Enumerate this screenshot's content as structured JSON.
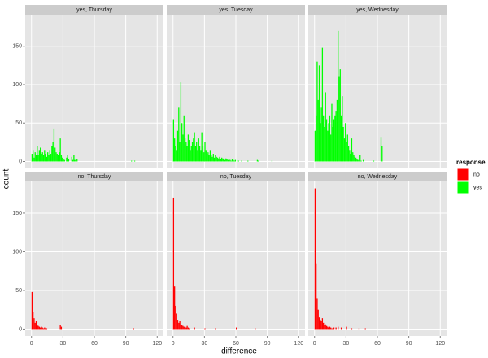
{
  "chart_data": {
    "type": "histogram",
    "xlabel": "difference",
    "ylabel": "count",
    "legend_title": "response",
    "legend": [
      {
        "name": "no",
        "color": "#ff0000"
      },
      {
        "name": "yes",
        "color": "#00ff00"
      }
    ],
    "xlim": [
      -6,
      126
    ],
    "xticks": [
      0,
      30,
      60,
      90,
      120
    ],
    "ylim": [
      -9,
      191
    ],
    "yticks": [
      0,
      50,
      100,
      150
    ],
    "grid": true,
    "bins": [
      0,
      1,
      2,
      3,
      4,
      5,
      6,
      7,
      8,
      9,
      10,
      11,
      12,
      13,
      14,
      15,
      16,
      17,
      18,
      19,
      20,
      21,
      22,
      23,
      24,
      25,
      26,
      27,
      28,
      29,
      30,
      31,
      32,
      33,
      34,
      35,
      36,
      37,
      38,
      39,
      40,
      41,
      42,
      43,
      44,
      45,
      46,
      47,
      48,
      49,
      50,
      51,
      52,
      53,
      54,
      55,
      56,
      57,
      58,
      59,
      60,
      61,
      62,
      63,
      64,
      65,
      66,
      67,
      68,
      69,
      70,
      71,
      72,
      73,
      74,
      75,
      76,
      77,
      78,
      79,
      80,
      81,
      82,
      83,
      84,
      85,
      86,
      87,
      88,
      89,
      90,
      91,
      92,
      93,
      94,
      95,
      96,
      97,
      98,
      99,
      100,
      101
    ],
    "panels": [
      {
        "title": "yes, Thursday",
        "color": "#00ff00",
        "values": [
          10,
          15,
          5,
          12,
          8,
          20,
          8,
          15,
          18,
          10,
          12,
          8,
          15,
          10,
          6,
          12,
          8,
          15,
          10,
          20,
          25,
          43,
          18,
          12,
          10,
          8,
          12,
          30,
          8,
          5,
          3,
          2,
          0,
          5,
          8,
          3,
          0,
          0,
          6,
          2,
          8,
          2,
          0,
          3,
          0,
          0,
          0,
          0,
          0,
          0,
          0,
          0,
          0,
          0,
          0,
          0,
          0,
          0,
          0,
          0,
          0,
          0,
          0,
          0,
          0,
          0,
          0,
          0,
          0,
          0,
          0,
          0,
          0,
          0,
          0,
          0,
          0,
          0,
          0,
          0,
          0,
          0,
          0,
          0,
          0,
          0,
          0,
          0,
          0,
          0,
          0,
          0,
          0,
          0,
          0,
          1,
          0,
          0,
          1,
          0,
          0
        ]
      },
      {
        "title": "yes, Tuesday",
        "color": "#00ff00",
        "values": [
          55,
          30,
          20,
          15,
          40,
          70,
          25,
          103,
          50,
          35,
          60,
          30,
          25,
          20,
          35,
          28,
          15,
          20,
          25,
          30,
          38,
          20,
          25,
          15,
          30,
          20,
          15,
          38,
          20,
          12,
          25,
          15,
          10,
          12,
          8,
          15,
          8,
          6,
          10,
          5,
          8,
          6,
          5,
          4,
          6,
          3,
          5,
          4,
          3,
          2,
          4,
          3,
          2,
          3,
          2,
          1,
          3,
          2,
          1,
          2,
          0,
          0,
          1,
          0,
          0,
          1,
          0,
          0,
          0,
          0,
          0,
          1,
          0,
          0,
          0,
          0,
          0,
          0,
          0,
          0,
          2,
          1,
          0,
          0,
          0,
          0,
          0,
          0,
          0,
          0,
          0,
          0,
          0,
          0,
          1,
          0,
          0,
          0,
          0,
          0,
          0
        ]
      },
      {
        "title": "yes, Wednesday",
        "color": "#00ff00",
        "values": [
          40,
          60,
          130,
          80,
          125,
          50,
          70,
          148,
          60,
          45,
          90,
          55,
          40,
          50,
          60,
          35,
          75,
          45,
          55,
          60,
          65,
          80,
          170,
          110,
          120,
          60,
          85,
          45,
          30,
          50,
          25,
          35,
          20,
          15,
          10,
          30,
          12,
          8,
          6,
          5,
          3,
          2,
          1,
          8,
          1,
          0,
          2,
          0,
          0,
          0,
          0,
          0,
          0,
          0,
          0,
          0,
          1,
          0,
          0,
          0,
          0,
          0,
          0,
          32,
          20,
          0,
          0,
          0,
          0,
          0,
          0,
          0,
          0,
          0,
          0,
          0,
          0,
          0,
          0,
          0,
          0,
          0,
          0,
          0,
          0,
          0,
          0,
          0,
          0,
          0,
          0,
          0,
          0,
          0,
          0,
          0,
          0,
          0,
          0,
          0,
          0
        ]
      },
      {
        "title": "no, Thursday",
        "color": "#ff0000",
        "values": [
          48,
          22,
          14,
          8,
          10,
          5,
          4,
          3,
          2,
          3,
          2,
          1,
          2,
          1,
          1,
          0,
          0,
          0,
          0,
          0,
          0,
          0,
          0,
          0,
          0,
          0,
          0,
          5,
          3,
          0,
          0,
          0,
          0,
          0,
          0,
          0,
          0,
          0,
          0,
          0,
          0,
          0,
          0,
          0,
          0,
          0,
          0,
          0,
          0,
          0,
          0,
          0,
          0,
          0,
          0,
          0,
          0,
          0,
          0,
          0,
          0,
          0,
          0,
          0,
          0,
          0,
          0,
          0,
          0,
          0,
          0,
          0,
          0,
          0,
          0,
          0,
          0,
          0,
          0,
          0,
          0,
          0,
          0,
          0,
          0,
          0,
          0,
          0,
          0,
          0,
          0,
          0,
          0,
          0,
          0,
          0,
          0,
          1,
          0,
          0,
          0
        ]
      },
      {
        "title": "no, Tuesday",
        "color": "#ff0000",
        "values": [
          170,
          55,
          30,
          20,
          12,
          8,
          10,
          6,
          5,
          4,
          3,
          3,
          2,
          4,
          2,
          1,
          0,
          0,
          0,
          0,
          2,
          0,
          0,
          0,
          0,
          0,
          0,
          0,
          0,
          0,
          1,
          0,
          0,
          0,
          0,
          0,
          0,
          0,
          0,
          0,
          1,
          0,
          0,
          0,
          0,
          0,
          0,
          0,
          0,
          0,
          0,
          0,
          0,
          0,
          0,
          0,
          0,
          0,
          0,
          0,
          2,
          0,
          0,
          0,
          0,
          0,
          0,
          0,
          0,
          0,
          0,
          0,
          0,
          0,
          0,
          0,
          0,
          0,
          1,
          0,
          0,
          0,
          0,
          0,
          0,
          0,
          0,
          0,
          0,
          0,
          0,
          0,
          0,
          0,
          0,
          0,
          0,
          0,
          0,
          0,
          0
        ]
      },
      {
        "title": "no, Wednesday",
        "color": "#ff0000",
        "values": [
          182,
          85,
          40,
          25,
          15,
          12,
          10,
          14,
          8,
          5,
          6,
          4,
          3,
          2,
          3,
          2,
          1,
          1,
          2,
          0,
          2,
          0,
          3,
          0,
          0,
          2,
          0,
          0,
          0,
          0,
          3,
          0,
          0,
          0,
          0,
          1,
          0,
          0,
          0,
          0,
          0,
          0,
          1,
          0,
          0,
          0,
          0,
          0,
          1,
          0,
          0,
          0,
          0,
          0,
          0,
          0,
          0,
          0,
          0,
          0,
          0,
          0,
          0,
          0,
          0,
          0,
          0,
          0,
          0,
          0,
          0,
          0,
          0,
          0,
          0,
          0,
          0,
          0,
          0,
          0,
          0,
          0,
          0,
          0,
          0,
          0,
          0,
          0,
          0,
          0,
          0,
          0,
          0,
          0,
          0,
          0,
          0,
          0,
          0,
          0,
          0
        ]
      }
    ]
  }
}
